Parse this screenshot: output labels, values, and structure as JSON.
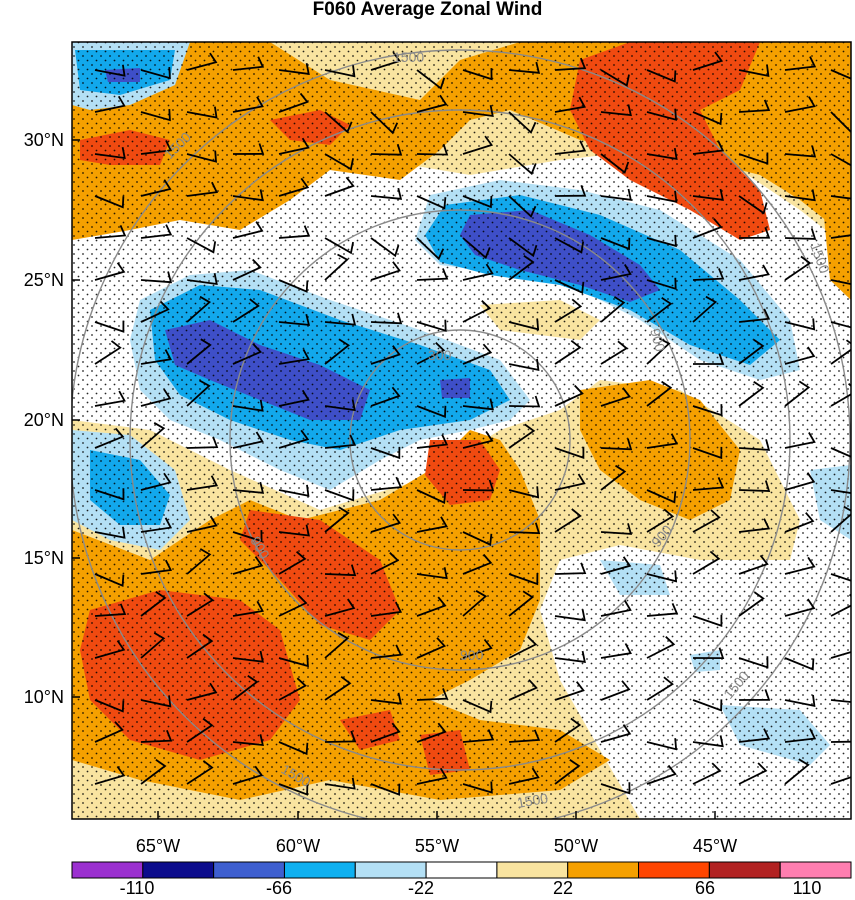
{
  "map": {
    "title": "F060 Average Zonal Wind",
    "lat_labels": [
      "30°N",
      "25°N",
      "20°N",
      "15°N",
      "10°N"
    ],
    "lon_labels": [
      "65°W",
      "60°W",
      "55°W",
      "50°W",
      "45°W"
    ],
    "contour_labels": [
      "1500",
      "1500",
      "1500",
      "1500",
      "1500",
      "1500",
      "900",
      "900",
      "900",
      "900",
      "300"
    ],
    "colorbar": {
      "tick_labels": [
        "-110",
        "-66",
        "-22",
        "22",
        "66",
        "110"
      ],
      "colors": [
        "#9b30d0",
        "#0c0c8c",
        "#3e5fd0",
        "#0fb0f0",
        "#b4e0f5",
        "#ffffff",
        "#f9e4a0",
        "#f5a000",
        "#ff4500",
        "#b22222",
        "#ff7eb0"
      ]
    },
    "fill_colors": {
      "strong_easterly": "#3e4fc8",
      "moderate_easterly": "#12a8ec",
      "weak_easterly": "#b4e0f5",
      "weak_westerly": "#f9e4a0",
      "moderate_westerly": "#f5a000",
      "strong_westerly": "#f04a10"
    }
  }
}
